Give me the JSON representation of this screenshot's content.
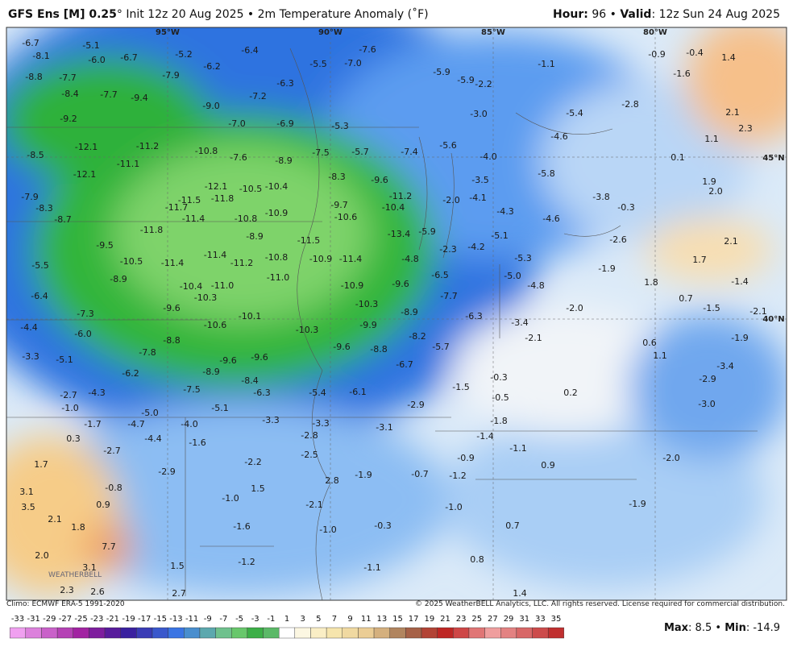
{
  "header": {
    "title": "GFS Ens [M] 0.25",
    "degree": "°",
    "subtitle": "Init 12z 20 Aug 2025 • 2m Temperature Anomaly (˚F)",
    "hour_label": "Hour:",
    "hour": "96",
    "separator": "•",
    "valid_label": "Valid",
    "valid": ": 12z Sun 24 Aug 2025"
  },
  "map": {
    "grid_labels": [
      "95°W",
      "90°W",
      "85°W",
      "80°W",
      "45°N",
      "40°N"
    ],
    "values": [
      "-6.7",
      "-5.1",
      "-8.1",
      "-6.0",
      "-6.7",
      "-5.2",
      "-6.4",
      "-7.6",
      "-7.0",
      "-5.5",
      "-6.2",
      "-8.8",
      "-7.7",
      "-7.9",
      "-6.3",
      "-5.9",
      "-5.9",
      "-2.2",
      "-1.1",
      "-0.9",
      "-0.4",
      "1.4",
      "-1.6",
      "-8.4",
      "-7.7",
      "-9.4",
      "-7.2",
      "-9.0",
      "-9.2",
      "-7.0",
      "-6.9",
      "-5.3",
      "-3.0",
      "-5.4",
      "-2.8",
      "2.1",
      "2.3",
      "-12.1",
      "-11.2",
      "-10.8",
      "-8.9",
      "-7.5",
      "-5.7",
      "-7.4",
      "-5.6",
      "-4.0",
      "-4.6",
      "1.1",
      "0.1",
      "-8.5",
      "-12.1",
      "-11.1",
      "-7.6",
      "-8.3",
      "-9.6",
      "-3.5",
      "-5.8",
      "1.9",
      "2.0",
      "-7.9",
      "-12.1",
      "-10.5",
      "-10.4",
      "-11.2",
      "-2.0",
      "-4.1",
      "-3.8",
      "-0.3",
      "-11.5",
      "-11.8",
      "-9.7",
      "-10.4",
      "-8.3",
      "-11.7",
      "-10.9",
      "-10.6",
      "-4.3",
      "-4.6",
      "-8.7",
      "-11.4",
      "-10.8",
      "-11.8",
      "-13.4",
      "-5.9",
      "-5.1",
      "-2.6",
      "2.1",
      "-9.5",
      "-8.9",
      "-11.5",
      "-4.2",
      "-2.3",
      "-11.4",
      "-11.2",
      "-10.8",
      "-10.9",
      "-11.4",
      "-4.8",
      "-5.3",
      "1.7",
      "-5.5",
      "-10.5",
      "-11.4",
      "-6.5",
      "-5.0",
      "-1.9",
      "1.8",
      "-1.4",
      "-8.9",
      "-11.0",
      "-9.6",
      "-4.8",
      "-6.4",
      "-10.4",
      "-11.0",
      "-10.9",
      "-7.7",
      "0.7",
      "-10.3",
      "-10.3",
      "-9.6",
      "-10.1",
      "-7.3",
      "-8.9",
      "-6.3",
      "-2.0",
      "-1.5",
      "-2.1",
      "-4.4",
      "-10.6",
      "-10.3",
      "-9.9",
      "-3.4",
      "-6.0",
      "-8.8",
      "-8.2",
      "-5.7",
      "-2.1",
      "0.6",
      "-1.9",
      "-3.3",
      "-5.1",
      "-7.8",
      "-9.6",
      "-8.8",
      "1.1",
      "-9.6",
      "-9.6",
      "-6.7",
      "-3.4",
      "-6.2",
      "-8.9",
      "-8.4",
      "-0.3",
      "-2.9",
      "-7.5",
      "-6.3",
      "-5.4",
      "-6.1",
      "-1.5",
      "-4.3",
      "-2.7",
      "-0.5",
      "0.2",
      "-1.0",
      "-5.1",
      "-5.0",
      "-2.9",
      "-3.0",
      "-1.7",
      "-4.7",
      "-4.0",
      "-3.3",
      "-3.3",
      "-1.8",
      "0.3",
      "-4.4",
      "-2.8",
      "-3.1",
      "-1.4",
      "-2.7",
      "-1.6",
      "-2.5",
      "-1.1",
      "-2.2",
      "-0.9",
      "-2.0",
      "1.7",
      "-2.9",
      "2.8",
      "-1.9",
      "-0.7",
      "-1.2",
      "0.9",
      "-0.8",
      "1.5",
      "3.1",
      "-1.0",
      "-1.9",
      "0.9",
      "-2.1",
      "-1.0",
      "3.5",
      "2.1",
      "1.8",
      "-1.6",
      "-1.0",
      "-0.3",
      "0.7",
      "7.7",
      "0.8",
      "2.0",
      "-1.2",
      "3.1",
      "1.5",
      "-1.1",
      "2.3",
      "2.6",
      "2.7",
      "1.4"
    ]
  },
  "footer": {
    "climo": "Climo: ECMWF ERA-5 1991-2020",
    "copyright": "© 2025 WeatherBELL Analytics, LLC. All rights reserved. License required for commercial distribution.",
    "watermark": "WEATHERBELL",
    "colorbar_ticks": [
      -33,
      -31,
      -29,
      -27,
      -25,
      -23,
      -21,
      -19,
      -17,
      -15,
      -13,
      -11,
      -9,
      -7,
      -5,
      -3,
      -1,
      1,
      3,
      5,
      7,
      9,
      11,
      13,
      15,
      17,
      19,
      21,
      23,
      25,
      27,
      29,
      31,
      33,
      35
    ],
    "max_label": "Max",
    "max_text": ": 8.5",
    "stats_separator": "•",
    "min_label": "Min",
    "min_text": ": -14.9"
  }
}
